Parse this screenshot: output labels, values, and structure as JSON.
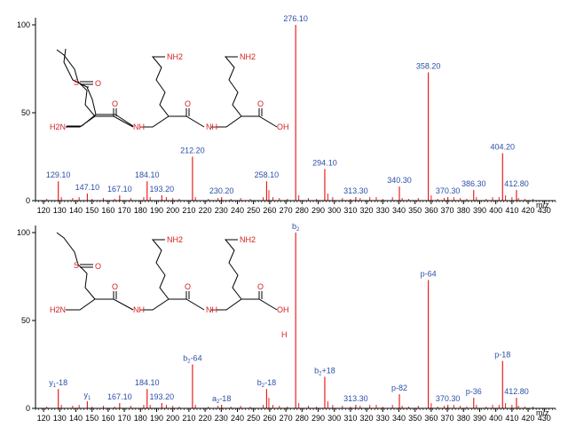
{
  "colors": {
    "peak": "#e8201e",
    "label": "#2b4ea8",
    "axis": "#000000",
    "bond": "#000000",
    "heteroatom": "#d42020"
  },
  "chart_data": [
    {
      "type": "bar",
      "panel": "top",
      "xlim": [
        115,
        437
      ],
      "ylim": [
        0,
        100
      ],
      "x_ticks": [
        120,
        130,
        140,
        150,
        160,
        170,
        180,
        190,
        200,
        210,
        220,
        230,
        240,
        250,
        260,
        270,
        280,
        290,
        300,
        310,
        320,
        330,
        340,
        350,
        360,
        370,
        380,
        390,
        400,
        410,
        420,
        430
      ],
      "y_ticks": [
        0,
        50,
        100
      ],
      "x_tick_labels": [
        "120",
        "130",
        "140",
        "150",
        "160",
        "170",
        "180",
        "190",
        "200",
        "210",
        "220",
        "230",
        "240",
        "250",
        "260",
        "270",
        "280",
        "290",
        "300",
        "310",
        "320",
        "330",
        "340",
        "350",
        "360",
        "370",
        "380",
        "390",
        "400",
        "410",
        "420",
        "430"
      ],
      "y_tick_labels": [
        "0",
        "50",
        "100"
      ],
      "axis_end_label": "m/z",
      "peaks": [
        {
          "x": 129.1,
          "y": 11,
          "label": "129.10"
        },
        {
          "x": 147.1,
          "y": 4,
          "label": "147.10"
        },
        {
          "x": 167.1,
          "y": 3,
          "label": "167.10"
        },
        {
          "x": 184.1,
          "y": 11,
          "label": "184.10"
        },
        {
          "x": 193.2,
          "y": 3,
          "label": "193.20"
        },
        {
          "x": 212.2,
          "y": 25,
          "label": "212.20"
        },
        {
          "x": 230.2,
          "y": 2,
          "label": "230.20"
        },
        {
          "x": 258.1,
          "y": 11,
          "label": "258.10"
        },
        {
          "x": 276.1,
          "y": 100,
          "label": "276.10"
        },
        {
          "x": 294.1,
          "y": 18,
          "label": "294.10"
        },
        {
          "x": 313.3,
          "y": 2,
          "label": "313.30"
        },
        {
          "x": 340.3,
          "y": 8,
          "label": "340.30"
        },
        {
          "x": 358.2,
          "y": 73,
          "label": "358.20"
        },
        {
          "x": 370.3,
          "y": 2,
          "label": "370.30"
        },
        {
          "x": 386.3,
          "y": 6,
          "label": "386.30"
        },
        {
          "x": 404.2,
          "y": 27,
          "label": "404.20"
        },
        {
          "x": 412.8,
          "y": 6,
          "label": "412.80"
        }
      ],
      "minor_peaks": [
        {
          "x": 122,
          "y": 1
        },
        {
          "x": 131,
          "y": 2
        },
        {
          "x": 138,
          "y": 1.5
        },
        {
          "x": 142,
          "y": 2
        },
        {
          "x": 150,
          "y": 1
        },
        {
          "x": 157,
          "y": 1.5
        },
        {
          "x": 164,
          "y": 1
        },
        {
          "x": 174,
          "y": 1.5
        },
        {
          "x": 182,
          "y": 2
        },
        {
          "x": 186,
          "y": 2
        },
        {
          "x": 196,
          "y": 2
        },
        {
          "x": 200,
          "y": 1.5
        },
        {
          "x": 204,
          "y": 1
        },
        {
          "x": 214,
          "y": 2
        },
        {
          "x": 222,
          "y": 1
        },
        {
          "x": 228,
          "y": 1.5
        },
        {
          "x": 236,
          "y": 1
        },
        {
          "x": 242,
          "y": 1.5
        },
        {
          "x": 248,
          "y": 1
        },
        {
          "x": 256,
          "y": 2
        },
        {
          "x": 259.5,
          "y": 6
        },
        {
          "x": 262,
          "y": 2
        },
        {
          "x": 266,
          "y": 1.5
        },
        {
          "x": 271,
          "y": 1
        },
        {
          "x": 278,
          "y": 3
        },
        {
          "x": 284,
          "y": 1.5
        },
        {
          "x": 289,
          "y": 1
        },
        {
          "x": 296,
          "y": 4
        },
        {
          "x": 299,
          "y": 2
        },
        {
          "x": 305,
          "y": 1.5
        },
        {
          "x": 310,
          "y": 1
        },
        {
          "x": 316,
          "y": 1.5
        },
        {
          "x": 322,
          "y": 2
        },
        {
          "x": 326,
          "y": 2
        },
        {
          "x": 330,
          "y": 1
        },
        {
          "x": 336,
          "y": 2
        },
        {
          "x": 342,
          "y": 1.5
        },
        {
          "x": 346,
          "y": 1
        },
        {
          "x": 352,
          "y": 1.5
        },
        {
          "x": 360,
          "y": 3
        },
        {
          "x": 364,
          "y": 1
        },
        {
          "x": 368,
          "y": 1.5
        },
        {
          "x": 374,
          "y": 2
        },
        {
          "x": 378,
          "y": 1.5
        },
        {
          "x": 382,
          "y": 1
        },
        {
          "x": 388,
          "y": 2
        },
        {
          "x": 394,
          "y": 1
        },
        {
          "x": 398,
          "y": 2
        },
        {
          "x": 402,
          "y": 2
        },
        {
          "x": 406,
          "y": 3
        },
        {
          "x": 410,
          "y": 2
        },
        {
          "x": 414,
          "y": 1.5
        },
        {
          "x": 418,
          "y": 1
        },
        {
          "x": 423,
          "y": 1
        }
      ]
    },
    {
      "type": "bar",
      "panel": "bottom",
      "xlim": [
        115,
        437
      ],
      "ylim": [
        0,
        100
      ],
      "x_ticks": [
        120,
        130,
        140,
        150,
        160,
        170,
        180,
        190,
        200,
        210,
        220,
        230,
        240,
        250,
        260,
        270,
        280,
        290,
        300,
        310,
        320,
        330,
        340,
        350,
        360,
        370,
        380,
        390,
        400,
        410,
        420,
        430
      ],
      "y_ticks": [
        0,
        50,
        100
      ],
      "x_tick_labels": [
        "120",
        "130",
        "140",
        "150",
        "160",
        "170",
        "180",
        "190",
        "200",
        "210",
        "220",
        "230",
        "240",
        "250",
        "260",
        "270",
        "280",
        "290",
        "300",
        "310",
        "320",
        "330",
        "340",
        "350",
        "360",
        "370",
        "380",
        "390",
        "400",
        "410",
        "420",
        "430"
      ],
      "y_tick_labels": [
        "0",
        "50",
        "100"
      ],
      "axis_end_label": "m/z",
      "peaks": [
        {
          "x": 129.1,
          "y": 11,
          "label": "y",
          "sub": "1",
          "suffix": "-18"
        },
        {
          "x": 147.1,
          "y": 4,
          "label": "y",
          "sub": "1",
          "suffix": ""
        },
        {
          "x": 167.1,
          "y": 3,
          "label": "167.10"
        },
        {
          "x": 184.1,
          "y": 11,
          "label": "184.10"
        },
        {
          "x": 193.2,
          "y": 3,
          "label": "193.20"
        },
        {
          "x": 212.2,
          "y": 25,
          "label": "b",
          "sub": "2",
          "suffix": "-64"
        },
        {
          "x": 230.2,
          "y": 2,
          "label": "a",
          "sub": "2",
          "suffix": "-18"
        },
        {
          "x": 258.1,
          "y": 11,
          "label": "b",
          "sub": "2",
          "suffix": "-18"
        },
        {
          "x": 276.1,
          "y": 100,
          "label": "b",
          "sub": "2",
          "suffix": ""
        },
        {
          "x": 294.1,
          "y": 18,
          "label": "b",
          "sub": "2",
          "suffix": "+18"
        },
        {
          "x": 313.3,
          "y": 2,
          "label": "313.30"
        },
        {
          "x": 340.3,
          "y": 8,
          "label": "p-82"
        },
        {
          "x": 358.2,
          "y": 73,
          "label": "p-64"
        },
        {
          "x": 370.3,
          "y": 2,
          "label": "370.30"
        },
        {
          "x": 386.3,
          "y": 6,
          "label": "p-36"
        },
        {
          "x": 404.2,
          "y": 27,
          "label": "p-18"
        },
        {
          "x": 412.8,
          "y": 6,
          "label": "412.80"
        }
      ],
      "minor_peaks": [
        {
          "x": 122,
          "y": 1
        },
        {
          "x": 131,
          "y": 2
        },
        {
          "x": 138,
          "y": 1.5
        },
        {
          "x": 142,
          "y": 2
        },
        {
          "x": 150,
          "y": 1
        },
        {
          "x": 157,
          "y": 1.5
        },
        {
          "x": 164,
          "y": 1
        },
        {
          "x": 174,
          "y": 1.5
        },
        {
          "x": 182,
          "y": 2
        },
        {
          "x": 186,
          "y": 2
        },
        {
          "x": 196,
          "y": 2
        },
        {
          "x": 200,
          "y": 1.5
        },
        {
          "x": 204,
          "y": 1
        },
        {
          "x": 214,
          "y": 2
        },
        {
          "x": 222,
          "y": 1
        },
        {
          "x": 228,
          "y": 1.5
        },
        {
          "x": 236,
          "y": 1
        },
        {
          "x": 242,
          "y": 1.5
        },
        {
          "x": 248,
          "y": 1
        },
        {
          "x": 256,
          "y": 2
        },
        {
          "x": 259.5,
          "y": 6
        },
        {
          "x": 262,
          "y": 2
        },
        {
          "x": 266,
          "y": 1.5
        },
        {
          "x": 271,
          "y": 1
        },
        {
          "x": 278,
          "y": 3
        },
        {
          "x": 284,
          "y": 1.5
        },
        {
          "x": 289,
          "y": 1
        },
        {
          "x": 296,
          "y": 4
        },
        {
          "x": 299,
          "y": 2
        },
        {
          "x": 305,
          "y": 1.5
        },
        {
          "x": 310,
          "y": 1
        },
        {
          "x": 316,
          "y": 1.5
        },
        {
          "x": 322,
          "y": 2
        },
        {
          "x": 326,
          "y": 2
        },
        {
          "x": 330,
          "y": 1
        },
        {
          "x": 336,
          "y": 2
        },
        {
          "x": 342,
          "y": 1.5
        },
        {
          "x": 346,
          "y": 1
        },
        {
          "x": 352,
          "y": 1.5
        },
        {
          "x": 360,
          "y": 3
        },
        {
          "x": 364,
          "y": 1
        },
        {
          "x": 368,
          "y": 1.5
        },
        {
          "x": 374,
          "y": 2
        },
        {
          "x": 378,
          "y": 1.5
        },
        {
          "x": 382,
          "y": 1
        },
        {
          "x": 388,
          "y": 2
        },
        {
          "x": 394,
          "y": 1
        },
        {
          "x": 398,
          "y": 2
        },
        {
          "x": 402,
          "y": 2
        },
        {
          "x": 406,
          "y": 3
        },
        {
          "x": 410,
          "y": 2
        },
        {
          "x": 414,
          "y": 1.5
        },
        {
          "x": 418,
          "y": 1
        },
        {
          "x": 423,
          "y": 1
        }
      ]
    }
  ],
  "molecule": {
    "atoms": {
      "s": "S",
      "o_sulfoxide": "O",
      "h2n": "H2N",
      "nh2_a": "NH2",
      "nh2_b": "NH2",
      "nh_1": "NH",
      "nh_2": "NH",
      "o_1": "O",
      "o_2": "O",
      "o_3": "O",
      "oh": "OH"
    }
  },
  "bottom_annotations": {
    "h_label": "H"
  }
}
